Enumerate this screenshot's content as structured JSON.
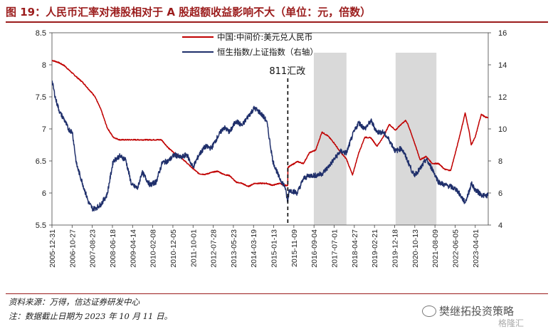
{
  "header": {
    "title": "图 19：人民币汇率对港股相对于 A 股超额收益影响不大（单位：元，倍数）"
  },
  "footer": {
    "source": "资料来源：万得，信达证券研发中心",
    "note": "注：数据截止日期为 2023 年 10 月 11 日。",
    "watermark": "樊继拓投资策略",
    "watermark2": "格隆汇"
  },
  "colors": {
    "accent": "#9b1c1c",
    "red_series": "#c00000",
    "blue_series": "#1f2f6b",
    "shade": "#d9d9d9"
  },
  "chart_data": {
    "type": "line",
    "title": "",
    "x_tick_labels": [
      "2005-12-31",
      "2006-10-27",
      "2007-08-23",
      "2008-06-18",
      "2009-04-14",
      "2010-02-08",
      "2010-12-05",
      "2011-10-01",
      "2012-07-28",
      "2013-05-23",
      "2014-03-19",
      "2015-01-13",
      "2015-11-09",
      "2016-09-04",
      "2017-07-01",
      "2018-04-27",
      "2019-02-21",
      "2019-12-18",
      "2020-10-13",
      "2021-08-09",
      "2022-06-05",
      "2023-04-01"
    ],
    "x_range": [
      "2005-12-31",
      "2023-10-11"
    ],
    "y_left": {
      "lim": [
        5.5,
        8.5
      ],
      "ticks": [
        "5.5",
        "6",
        "6.5",
        "7",
        "7.5",
        "8",
        "8.5"
      ]
    },
    "y_right": {
      "lim": [
        4,
        16
      ],
      "ticks": [
        "4",
        "6",
        "8",
        "10",
        "12",
        "14",
        "16"
      ]
    },
    "shaded_periods": [
      {
        "start": "2016-09-01",
        "end": "2017-12-31"
      },
      {
        "start": "2020-01-01",
        "end": "2021-08-31"
      }
    ],
    "vline": {
      "date": "2015-08-11",
      "label": "811汇改"
    },
    "legend_position": "top",
    "series": [
      {
        "name": "中国:中间价:美元兑人民币",
        "axis": "left",
        "points": [
          [
            "2005-12-31",
            8.07
          ],
          [
            "2006-03-31",
            8.04
          ],
          [
            "2006-06-30",
            7.99
          ],
          [
            "2006-09-30",
            7.9
          ],
          [
            "2006-12-31",
            7.81
          ],
          [
            "2007-03-31",
            7.73
          ],
          [
            "2007-06-30",
            7.62
          ],
          [
            "2007-09-30",
            7.51
          ],
          [
            "2007-12-31",
            7.3
          ],
          [
            "2008-03-31",
            7.02
          ],
          [
            "2008-06-30",
            6.87
          ],
          [
            "2008-09-30",
            6.83
          ],
          [
            "2008-12-31",
            6.83
          ],
          [
            "2009-06-30",
            6.83
          ],
          [
            "2009-12-31",
            6.83
          ],
          [
            "2010-06-18",
            6.83
          ],
          [
            "2010-09-30",
            6.7
          ],
          [
            "2010-12-31",
            6.62
          ],
          [
            "2011-03-31",
            6.56
          ],
          [
            "2011-06-30",
            6.47
          ],
          [
            "2011-09-30",
            6.38
          ],
          [
            "2011-12-31",
            6.3
          ],
          [
            "2012-03-31",
            6.29
          ],
          [
            "2012-06-30",
            6.32
          ],
          [
            "2012-09-30",
            6.34
          ],
          [
            "2012-12-31",
            6.29
          ],
          [
            "2013-03-31",
            6.27
          ],
          [
            "2013-06-30",
            6.17
          ],
          [
            "2013-09-30",
            6.15
          ],
          [
            "2013-12-31",
            6.1
          ],
          [
            "2014-03-31",
            6.15
          ],
          [
            "2014-06-30",
            6.15
          ],
          [
            "2014-09-30",
            6.15
          ],
          [
            "2014-12-31",
            6.12
          ],
          [
            "2015-03-31",
            6.15
          ],
          [
            "2015-06-30",
            6.12
          ],
          [
            "2015-08-10",
            6.12
          ],
          [
            "2015-08-13",
            6.4
          ],
          [
            "2015-12-31",
            6.49
          ],
          [
            "2016-03-31",
            6.46
          ],
          [
            "2016-06-30",
            6.63
          ],
          [
            "2016-09-30",
            6.67
          ],
          [
            "2016-12-31",
            6.95
          ],
          [
            "2017-03-31",
            6.89
          ],
          [
            "2017-06-30",
            6.78
          ],
          [
            "2017-09-30",
            6.64
          ],
          [
            "2017-12-31",
            6.53
          ],
          [
            "2018-03-31",
            6.28
          ],
          [
            "2018-06-30",
            6.62
          ],
          [
            "2018-09-30",
            6.87
          ],
          [
            "2018-12-31",
            6.86
          ],
          [
            "2019-03-31",
            6.73
          ],
          [
            "2019-06-30",
            6.87
          ],
          [
            "2019-09-30",
            7.07
          ],
          [
            "2019-12-31",
            6.98
          ],
          [
            "2020-03-31",
            7.08
          ],
          [
            "2020-05-31",
            7.13
          ],
          [
            "2020-06-30",
            7.08
          ],
          [
            "2020-09-30",
            6.81
          ],
          [
            "2020-12-31",
            6.52
          ],
          [
            "2021-03-31",
            6.57
          ],
          [
            "2021-06-30",
            6.46
          ],
          [
            "2021-09-30",
            6.46
          ],
          [
            "2021-12-31",
            6.37
          ],
          [
            "2022-03-31",
            6.35
          ],
          [
            "2022-06-30",
            6.71
          ],
          [
            "2022-09-30",
            7.1
          ],
          [
            "2022-11-01",
            7.25
          ],
          [
            "2022-12-31",
            6.96
          ],
          [
            "2023-01-31",
            6.75
          ],
          [
            "2023-03-31",
            6.87
          ],
          [
            "2023-06-30",
            7.23
          ],
          [
            "2023-08-31",
            7.18
          ],
          [
            "2023-10-11",
            7.18
          ]
        ]
      },
      {
        "name": "恒生指数/上证指数（右轴）",
        "axis": "right",
        "points": [
          [
            "2005-12-31",
            13.0
          ],
          [
            "2006-02-28",
            11.8
          ],
          [
            "2006-04-30",
            11.0
          ],
          [
            "2006-06-30",
            10.6
          ],
          [
            "2006-08-31",
            10.0
          ],
          [
            "2006-10-31",
            9.8
          ],
          [
            "2006-12-31",
            7.8
          ],
          [
            "2007-03-31",
            6.6
          ],
          [
            "2007-06-30",
            5.4
          ],
          [
            "2007-08-31",
            5.0
          ],
          [
            "2007-10-31",
            5.1
          ],
          [
            "2007-12-31",
            5.3
          ],
          [
            "2008-03-31",
            5.9
          ],
          [
            "2008-06-30",
            8.0
          ],
          [
            "2008-09-30",
            8.3
          ],
          [
            "2008-12-31",
            8.1
          ],
          [
            "2009-03-31",
            6.5
          ],
          [
            "2009-06-30",
            6.3
          ],
          [
            "2009-08-31",
            7.3
          ],
          [
            "2009-12-31",
            6.5
          ],
          [
            "2010-03-31",
            6.7
          ],
          [
            "2010-06-30",
            7.9
          ],
          [
            "2010-09-30",
            8.0
          ],
          [
            "2010-12-31",
            8.4
          ],
          [
            "2011-03-31",
            8.2
          ],
          [
            "2011-06-30",
            8.4
          ],
          [
            "2011-09-30",
            7.6
          ],
          [
            "2011-12-31",
            8.4
          ],
          [
            "2012-03-31",
            8.9
          ],
          [
            "2012-06-30",
            8.8
          ],
          [
            "2012-09-30",
            9.5
          ],
          [
            "2012-12-31",
            10.1
          ],
          [
            "2013-03-31",
            9.8
          ],
          [
            "2013-06-30",
            10.5
          ],
          [
            "2013-09-30",
            10.2
          ],
          [
            "2013-12-31",
            10.8
          ],
          [
            "2014-03-31",
            11.3
          ],
          [
            "2014-06-30",
            11.0
          ],
          [
            "2014-09-30",
            10.5
          ],
          [
            "2014-12-31",
            8.0
          ],
          [
            "2015-03-31",
            7.0
          ],
          [
            "2015-06-30",
            6.4
          ],
          [
            "2015-08-10",
            5.4
          ],
          [
            "2015-08-31",
            6.2
          ],
          [
            "2015-12-31",
            6.0
          ],
          [
            "2016-03-31",
            6.9
          ],
          [
            "2016-06-30",
            7.1
          ],
          [
            "2016-09-30",
            7.1
          ],
          [
            "2016-12-31",
            7.2
          ],
          [
            "2017-03-31",
            7.6
          ],
          [
            "2017-06-30",
            8.1
          ],
          [
            "2017-09-30",
            8.6
          ],
          [
            "2017-12-31",
            8.5
          ],
          [
            "2018-03-31",
            9.6
          ],
          [
            "2018-06-30",
            10.4
          ],
          [
            "2018-09-30",
            10.0
          ],
          [
            "2018-12-31",
            10.5
          ],
          [
            "2019-03-31",
            9.8
          ],
          [
            "2019-06-30",
            9.8
          ],
          [
            "2019-09-30",
            9.3
          ],
          [
            "2019-12-31",
            8.6
          ],
          [
            "2020-03-31",
            8.8
          ],
          [
            "2020-06-30",
            8.0
          ],
          [
            "2020-09-30",
            7.1
          ],
          [
            "2020-12-31",
            7.5
          ],
          [
            "2021-03-31",
            8.1
          ],
          [
            "2021-06-30",
            7.5
          ],
          [
            "2021-09-30",
            6.7
          ],
          [
            "2021-12-31",
            6.5
          ],
          [
            "2022-03-31",
            6.4
          ],
          [
            "2022-06-30",
            6.2
          ],
          [
            "2022-09-30",
            5.6
          ],
          [
            "2022-10-31",
            5.4
          ],
          [
            "2022-12-31",
            6.1
          ],
          [
            "2023-01-31",
            6.6
          ],
          [
            "2023-03-31",
            6.2
          ],
          [
            "2023-06-30",
            5.9
          ],
          [
            "2023-08-31",
            5.8
          ],
          [
            "2023-10-11",
            5.9
          ]
        ]
      }
    ]
  }
}
